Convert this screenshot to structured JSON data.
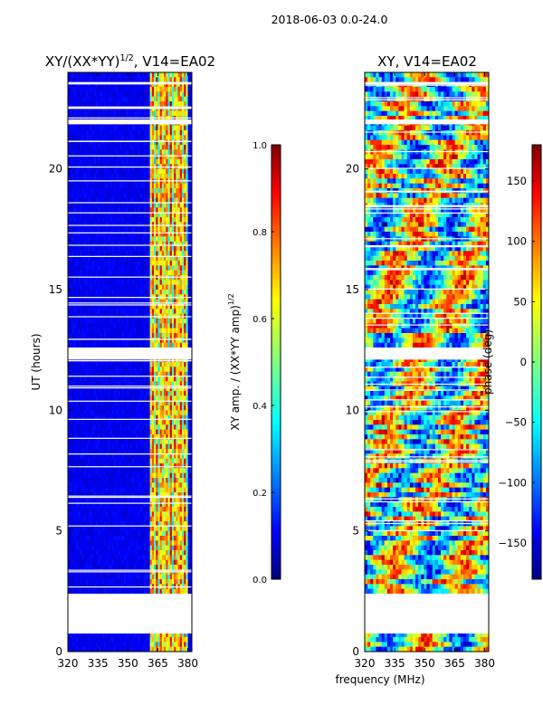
{
  "suptitle": "2018-06-03 0.0-24.0",
  "chart_data": [
    {
      "type": "heatmap",
      "title": "XY/(XX*YY)",
      "title_exp": "1/2",
      "title_suffix": ", V14=EA02",
      "xlabel": "frequency (MHz)",
      "ylabel": "UT (hours)",
      "xlim": [
        320,
        382
      ],
      "ylim": [
        0,
        24
      ],
      "xticks": [
        320,
        335,
        350,
        365,
        380
      ],
      "yticks": [
        0,
        5,
        10,
        15,
        20
      ],
      "colormap": "jet",
      "colorbar": {
        "label": "XY amp. / (XX*YY amp)",
        "label_exp": "1/2",
        "range": [
          0.0,
          1.0
        ],
        "ticks": [
          "0.0",
          "0.2",
          "0.4",
          "0.6",
          "0.8",
          "1.0"
        ],
        "tick_values": [
          0.0,
          0.2,
          0.4,
          0.6,
          0.8,
          1.0
        ]
      },
      "data_gaps_ut": [
        [
          0.75,
          2.4
        ],
        [
          12.1,
          12.6
        ],
        [
          21.85,
          22.05
        ],
        [
          23.5,
          23.6
        ]
      ]
    },
    {
      "type": "heatmap",
      "title": "XY, V14=EA02",
      "xlim": [
        320,
        382
      ],
      "ylim": [
        0,
        24
      ],
      "xticks": [
        320,
        335,
        350,
        365,
        380
      ],
      "yticks": [
        0,
        5,
        10,
        15,
        20
      ],
      "colormap": "jet",
      "colorbar": {
        "label": "phase (deg)",
        "range": [
          -180,
          180
        ],
        "ticks": [
          "150",
          "100",
          "50",
          "0",
          "−50",
          "−100",
          "−150"
        ],
        "tick_values": [
          150,
          100,
          50,
          0,
          -50,
          -100,
          -150
        ]
      },
      "data_gaps_ut": [
        [
          0.75,
          2.4
        ],
        [
          12.1,
          12.6
        ],
        [
          21.85,
          22.05
        ],
        [
          23.5,
          23.6
        ]
      ]
    }
  ],
  "colors": {
    "jet": [
      "#00007f",
      "#0000ff",
      "#007fff",
      "#00ffff",
      "#7fff7f",
      "#ffff00",
      "#ff7f00",
      "#ff0000",
      "#7f0000"
    ]
  }
}
